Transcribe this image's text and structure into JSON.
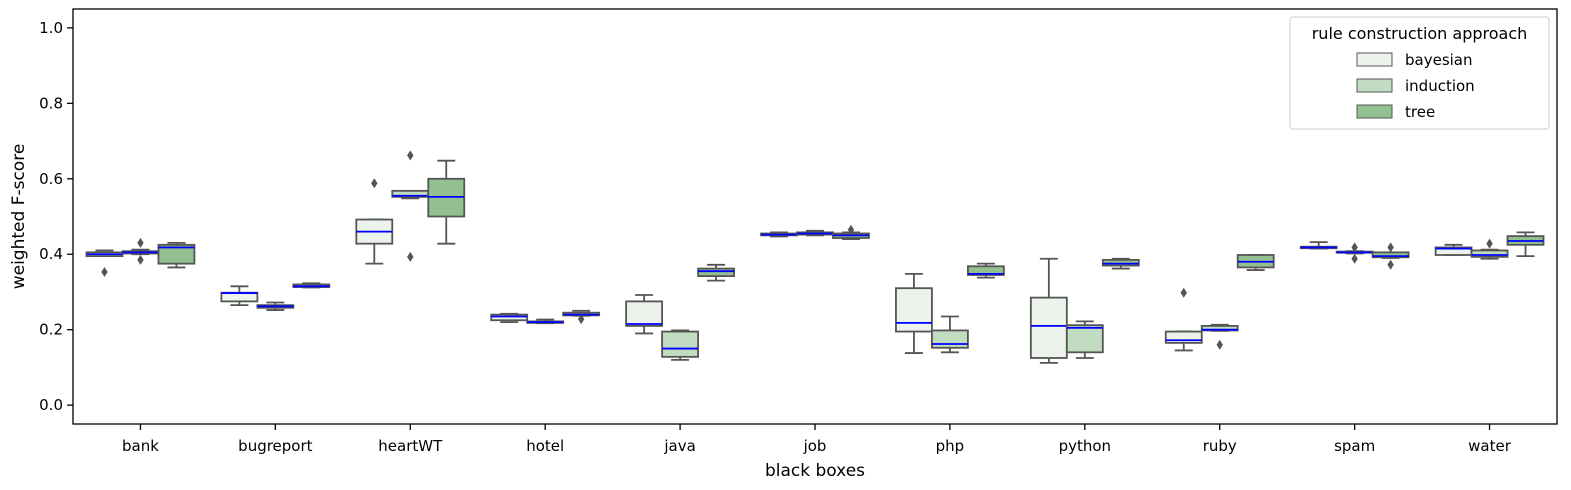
{
  "chart_data": {
    "type": "box",
    "xlabel": "black boxes",
    "ylabel": "weighted F-score",
    "ylim": [
      -0.05,
      1.05
    ],
    "yticks": [
      "0.0",
      "0.2",
      "0.4",
      "0.6",
      "0.8",
      "1.0"
    ],
    "categories": [
      "bank",
      "bugreport",
      "heartWT",
      "hotel",
      "java",
      "job",
      "php",
      "python",
      "ruby",
      "spam",
      "water"
    ],
    "legend": {
      "title": "rule construction approach",
      "position": "top-right"
    },
    "colors": {
      "bayesian": "#ebf3ea",
      "induction": "#c1dcc0",
      "tree": "#93c08f",
      "median": "#0000ff",
      "box_edge": "#555555"
    },
    "series": [
      {
        "name": "bayesian",
        "boxes": [
          {
            "whislo": 0.395,
            "q1": 0.395,
            "med": 0.4,
            "q3": 0.405,
            "whishi": 0.41,
            "fliers": [
              0.353
            ]
          },
          {
            "whislo": 0.265,
            "q1": 0.275,
            "med": 0.297,
            "q3": 0.298,
            "whishi": 0.315,
            "fliers": []
          },
          {
            "whislo": 0.375,
            "q1": 0.428,
            "med": 0.46,
            "q3": 0.492,
            "whishi": 0.492,
            "fliers": [
              0.588
            ]
          },
          {
            "whislo": 0.22,
            "q1": 0.225,
            "med": 0.235,
            "q3": 0.24,
            "whishi": 0.242,
            "fliers": []
          },
          {
            "whislo": 0.19,
            "q1": 0.21,
            "med": 0.215,
            "q3": 0.275,
            "whishi": 0.292,
            "fliers": []
          },
          {
            "whislo": 0.447,
            "q1": 0.45,
            "med": 0.452,
            "q3": 0.455,
            "whishi": 0.458,
            "fliers": []
          },
          {
            "whislo": 0.138,
            "q1": 0.195,
            "med": 0.218,
            "q3": 0.31,
            "whishi": 0.348,
            "fliers": []
          },
          {
            "whislo": 0.112,
            "q1": 0.125,
            "med": 0.21,
            "q3": 0.285,
            "whishi": 0.388,
            "fliers": []
          },
          {
            "whislo": 0.145,
            "q1": 0.165,
            "med": 0.172,
            "q3": 0.195,
            "whishi": 0.195,
            "fliers": [
              0.298
            ]
          },
          {
            "whislo": 0.415,
            "q1": 0.416,
            "med": 0.418,
            "q3": 0.42,
            "whishi": 0.432,
            "fliers": []
          },
          {
            "whislo": 0.398,
            "q1": 0.398,
            "med": 0.415,
            "q3": 0.418,
            "whishi": 0.425,
            "fliers": []
          }
        ]
      },
      {
        "name": "induction",
        "boxes": [
          {
            "whislo": 0.4,
            "q1": 0.402,
            "med": 0.405,
            "q3": 0.408,
            "whishi": 0.412,
            "fliers": [
              0.385,
              0.43
            ]
          },
          {
            "whislo": 0.252,
            "q1": 0.258,
            "med": 0.262,
            "q3": 0.265,
            "whishi": 0.272,
            "fliers": []
          },
          {
            "whislo": 0.548,
            "q1": 0.552,
            "med": 0.555,
            "q3": 0.568,
            "whishi": 0.568,
            "fliers": [
              0.393,
              0.662
            ]
          },
          {
            "whislo": 0.217,
            "q1": 0.218,
            "med": 0.22,
            "q3": 0.222,
            "whishi": 0.227,
            "fliers": []
          },
          {
            "whislo": 0.12,
            "q1": 0.128,
            "med": 0.15,
            "q3": 0.195,
            "whishi": 0.198,
            "fliers": []
          },
          {
            "whislo": 0.45,
            "q1": 0.452,
            "med": 0.455,
            "q3": 0.458,
            "whishi": 0.462,
            "fliers": []
          },
          {
            "whislo": 0.14,
            "q1": 0.152,
            "med": 0.162,
            "q3": 0.198,
            "whishi": 0.235,
            "fliers": []
          },
          {
            "whislo": 0.125,
            "q1": 0.14,
            "med": 0.205,
            "q3": 0.212,
            "whishi": 0.222,
            "fliers": []
          },
          {
            "whislo": 0.197,
            "q1": 0.198,
            "med": 0.2,
            "q3": 0.21,
            "whishi": 0.213,
            "fliers": [
              0.16
            ]
          },
          {
            "whislo": 0.402,
            "q1": 0.404,
            "med": 0.405,
            "q3": 0.407,
            "whishi": 0.408,
            "fliers": [
              0.388,
              0.418
            ]
          },
          {
            "whislo": 0.388,
            "q1": 0.393,
            "med": 0.398,
            "q3": 0.41,
            "whishi": 0.412,
            "fliers": [
              0.428
            ]
          }
        ]
      },
      {
        "name": "tree",
        "boxes": [
          {
            "whislo": 0.365,
            "q1": 0.375,
            "med": 0.418,
            "q3": 0.425,
            "whishi": 0.43,
            "fliers": []
          },
          {
            "whislo": 0.312,
            "q1": 0.313,
            "med": 0.315,
            "q3": 0.32,
            "whishi": 0.323,
            "fliers": []
          },
          {
            "whislo": 0.428,
            "q1": 0.5,
            "med": 0.552,
            "q3": 0.6,
            "whishi": 0.648,
            "fliers": []
          },
          {
            "whislo": 0.237,
            "q1": 0.238,
            "med": 0.24,
            "q3": 0.245,
            "whishi": 0.25,
            "fliers": [
              0.228
            ]
          },
          {
            "whislo": 0.33,
            "q1": 0.342,
            "med": 0.355,
            "q3": 0.362,
            "whishi": 0.372,
            "fliers": []
          },
          {
            "whislo": 0.44,
            "q1": 0.443,
            "med": 0.45,
            "q3": 0.455,
            "whishi": 0.458,
            "fliers": [
              0.465
            ]
          },
          {
            "whislo": 0.338,
            "q1": 0.345,
            "med": 0.348,
            "q3": 0.368,
            "whishi": 0.375,
            "fliers": []
          },
          {
            "whislo": 0.362,
            "q1": 0.37,
            "med": 0.375,
            "q3": 0.385,
            "whishi": 0.388,
            "fliers": []
          },
          {
            "whislo": 0.358,
            "q1": 0.365,
            "med": 0.38,
            "q3": 0.398,
            "whishi": 0.398,
            "fliers": []
          },
          {
            "whislo": 0.39,
            "q1": 0.392,
            "med": 0.395,
            "q3": 0.405,
            "whishi": 0.405,
            "fliers": [
              0.372,
              0.418
            ]
          },
          {
            "whislo": 0.395,
            "q1": 0.425,
            "med": 0.435,
            "q3": 0.448,
            "whishi": 0.458,
            "fliers": []
          }
        ]
      }
    ]
  }
}
